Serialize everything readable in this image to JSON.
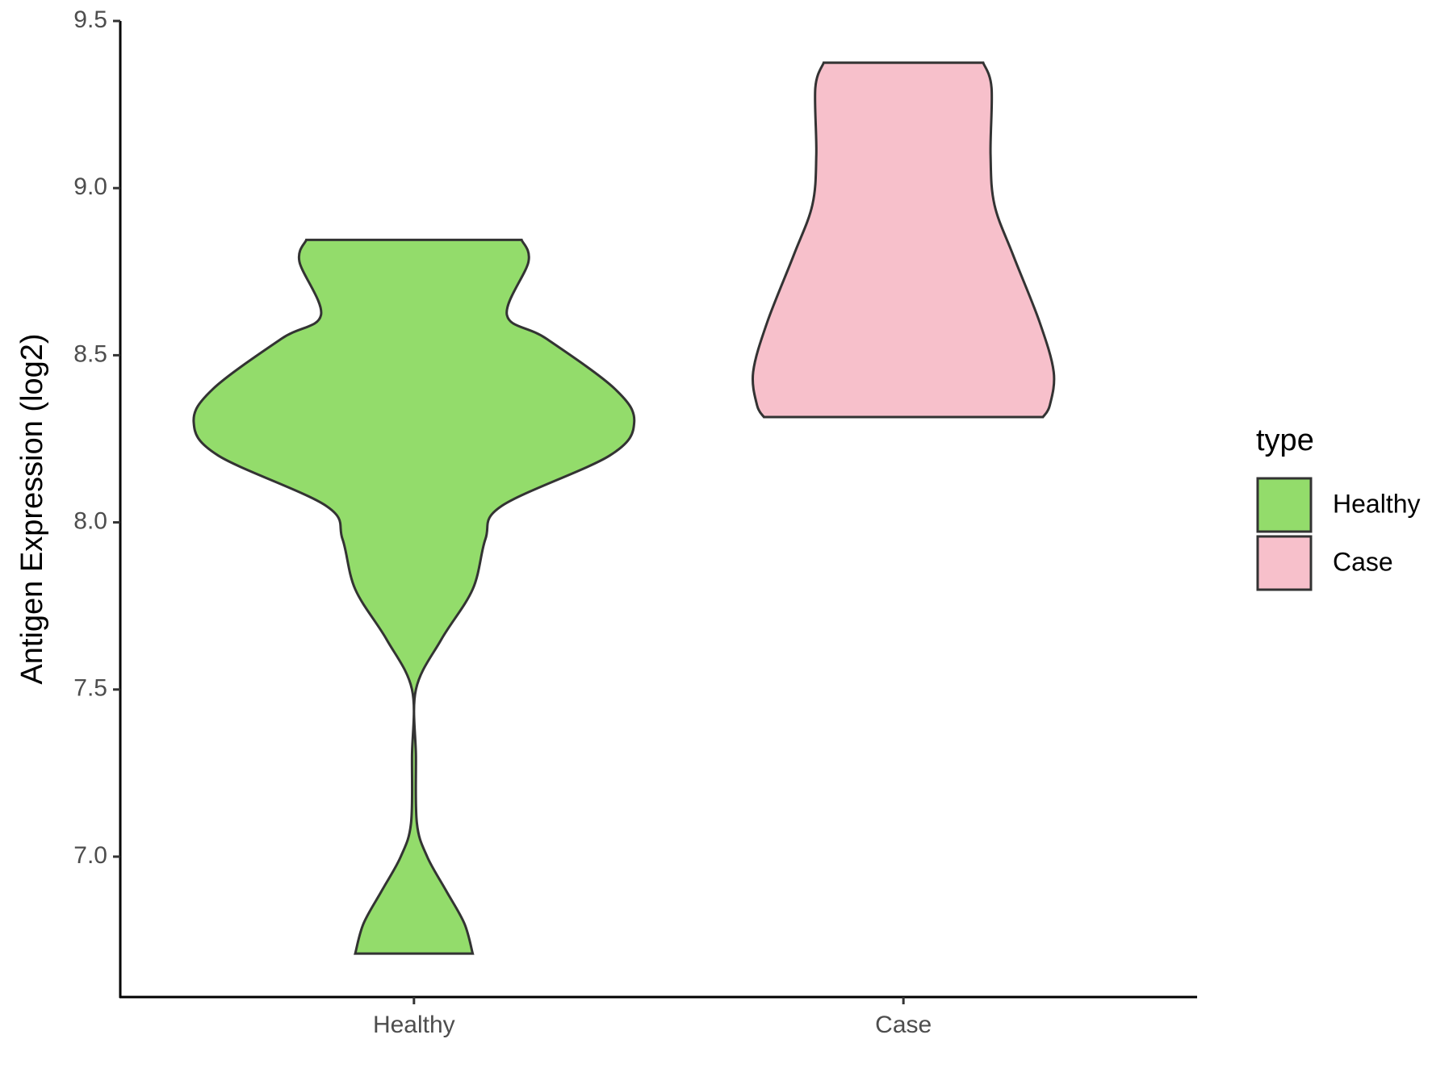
{
  "chart_data": {
    "type": "violin",
    "y_label": "Antigen Expression (log2)",
    "legend_title": "type",
    "categories": [
      "Healthy",
      "Case"
    ],
    "ylim": [
      6.58,
      9.5
    ],
    "yticks": [
      {
        "value": 7.0,
        "label": "7.0"
      },
      {
        "value": 7.5,
        "label": "7.5"
      },
      {
        "value": 8.0,
        "label": "8.0"
      },
      {
        "value": 8.5,
        "label": "8.5"
      },
      {
        "value": 9.0,
        "label": "9.0"
      },
      {
        "value": 9.5,
        "label": "9.5"
      }
    ],
    "legend_position": "right",
    "grid": false,
    "series": [
      {
        "name": "Healthy",
        "color": "#93dc6b",
        "y": [
          6.71,
          6.8,
          6.9,
          7.0,
          7.1,
          7.3,
          7.5,
          7.65,
          7.8,
          7.95,
          8.05,
          8.2,
          8.3,
          8.4,
          8.55,
          8.62,
          8.78,
          8.845
        ],
        "width": [
          0.12,
          0.103,
          0.065,
          0.027,
          0.006,
          0.004,
          0.004,
          0.056,
          0.12,
          0.146,
          0.18,
          0.4,
          0.45,
          0.41,
          0.27,
          0.19,
          0.234,
          0.22
        ]
      },
      {
        "name": "Case",
        "color": "#f7c0cb",
        "y": [
          8.315,
          8.35,
          8.45,
          8.6,
          8.8,
          8.95,
          9.1,
          9.3,
          9.375
        ],
        "width": [
          0.285,
          0.299,
          0.307,
          0.278,
          0.224,
          0.186,
          0.178,
          0.18,
          0.163
        ]
      }
    ]
  }
}
